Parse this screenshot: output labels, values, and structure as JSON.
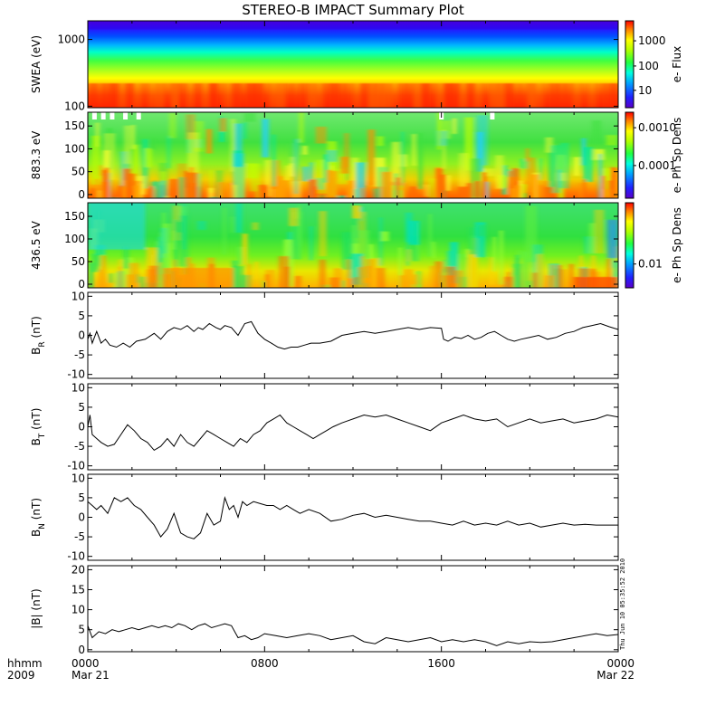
{
  "title": "STEREO-B IMPACT Summary Plot",
  "timestamp": "Thu Jun 10 05:35:52 2010",
  "xaxis": {
    "corner_top": "hhmm",
    "corner_bottom": "2009",
    "ticks": [
      {
        "t": 0,
        "label": "0000",
        "sub": "Mar 21"
      },
      {
        "t": 8,
        "label": "0800",
        "sub": ""
      },
      {
        "t": 16,
        "label": "1600",
        "sub": ""
      },
      {
        "t": 24,
        "label": "0000",
        "sub": "Mar 22"
      }
    ]
  },
  "chart_data": [
    {
      "type": "heatmap",
      "id": "swea",
      "ylabel": "SWEA (eV)",
      "yscale": "log",
      "ylim": [
        95,
        1900
      ],
      "yticks": [
        100,
        1000
      ],
      "yticklabels": [
        "100",
        "1000"
      ],
      "colorbar": {
        "label": "e- Flux",
        "ticks": [
          "10",
          "100",
          "1000"
        ],
        "scale": "log"
      },
      "description_of_values": "flux increases toward low energy, red below ~200 eV, blue above ~900 eV"
    },
    {
      "type": "heatmap",
      "id": "pad883",
      "ylabel": "883.3 eV",
      "ylim": [
        -8,
        180
      ],
      "yticks": [
        0,
        50,
        100,
        150
      ],
      "colorbar": {
        "label": "e- Ph Sp Dens",
        "ticks": [
          "0.0001",
          "0.0010"
        ],
        "scale": "log"
      }
    },
    {
      "type": "heatmap",
      "id": "pad436",
      "ylabel": "436.5 eV",
      "ylim": [
        -8,
        180
      ],
      "yticks": [
        0,
        50,
        100,
        150
      ],
      "colorbar": {
        "label": "e- Ph Sp Dens",
        "ticks": [
          "0.01"
        ],
        "scale": "log"
      }
    },
    {
      "type": "line",
      "id": "br",
      "ylabel": "B",
      "ylabel_sub": "R",
      "ylabel_unit": " (nT)",
      "ylim": [
        -11,
        11
      ],
      "yticks": [
        -10,
        -5,
        0,
        5,
        10
      ],
      "x": [
        0,
        0.1,
        0.2,
        0.4,
        0.6,
        0.8,
        1.0,
        1.3,
        1.6,
        1.9,
        2.2,
        2.6,
        3.0,
        3.3,
        3.6,
        3.9,
        4.2,
        4.5,
        4.8,
        5.0,
        5.2,
        5.5,
        5.8,
        6.0,
        6.2,
        6.5,
        6.8,
        7.1,
        7.4,
        7.7,
        8.0,
        8.3,
        8.6,
        8.9,
        9.2,
        9.5,
        9.8,
        10.1,
        10.5,
        11.0,
        11.5,
        12.0,
        12.5,
        13.0,
        13.5,
        14.0,
        14.5,
        15.0,
        15.5,
        16.0,
        16.1,
        16.3,
        16.6,
        16.9,
        17.2,
        17.5,
        17.8,
        18.1,
        18.4,
        18.7,
        19.0,
        19.3,
        19.6,
        20.0,
        20.4,
        20.8,
        21.2,
        21.6,
        22.0,
        22.4,
        22.8,
        23.2,
        23.6,
        24.0
      ],
      "y": [
        -1,
        0.5,
        -2,
        1,
        -2,
        -1,
        -2.5,
        -3,
        -2,
        -3,
        -1.5,
        -1,
        0.5,
        -1,
        1,
        2,
        1.5,
        2.5,
        1,
        2,
        1.5,
        3,
        2,
        1.5,
        2.5,
        2,
        0,
        3,
        3.5,
        0.5,
        -1,
        -2,
        -3,
        -3.5,
        -3,
        -3,
        -2.5,
        -2,
        -2,
        -1.5,
        0,
        0.5,
        1,
        0.5,
        1,
        1.5,
        2,
        1.5,
        2,
        1.8,
        -1,
        -1.5,
        -0.5,
        -0.8,
        0,
        -1,
        -0.5,
        0.5,
        1,
        0,
        -1,
        -1.5,
        -1,
        -0.5,
        0,
        -1,
        -0.5,
        0.5,
        1,
        2,
        2.5,
        3,
        2.2,
        1.5
      ]
    },
    {
      "type": "line",
      "id": "bt",
      "ylabel": "B",
      "ylabel_sub": "T",
      "ylabel_unit": " (nT)",
      "ylim": [
        -11,
        11
      ],
      "yticks": [
        -10,
        -5,
        0,
        5,
        10
      ],
      "x": [
        0,
        0.1,
        0.2,
        0.4,
        0.6,
        0.9,
        1.2,
        1.5,
        1.8,
        2.1,
        2.4,
        2.7,
        3.0,
        3.3,
        3.6,
        3.9,
        4.2,
        4.5,
        4.8,
        5.1,
        5.4,
        5.7,
        6.0,
        6.3,
        6.6,
        6.9,
        7.2,
        7.5,
        7.8,
        8.1,
        8.4,
        8.7,
        9.0,
        9.3,
        9.6,
        9.9,
        10.2,
        10.5,
        10.8,
        11.1,
        11.5,
        12.0,
        12.5,
        13.0,
        13.5,
        14.0,
        14.5,
        15.0,
        15.5,
        16.0,
        16.5,
        17.0,
        17.5,
        18.0,
        18.5,
        19.0,
        19.5,
        20.0,
        20.5,
        21.0,
        21.5,
        22.0,
        22.5,
        23.0,
        23.5,
        24.0
      ],
      "y": [
        0,
        3,
        -2,
        -3,
        -4,
        -5,
        -4.5,
        -2,
        0.5,
        -1,
        -3,
        -4,
        -6,
        -5,
        -3,
        -5,
        -2,
        -4,
        -5,
        -3,
        -1,
        -2,
        -3,
        -4,
        -5,
        -3,
        -4,
        -2,
        -1,
        1,
        2,
        3,
        1,
        0,
        -1,
        -2,
        -3,
        -2,
        -1,
        0,
        1,
        2,
        3,
        2.5,
        3,
        2,
        1,
        0,
        -1,
        1,
        2,
        3,
        2,
        1.5,
        2,
        0,
        1,
        2,
        1,
        1.5,
        2,
        1,
        1.5,
        2,
        3,
        2.5
      ]
    },
    {
      "type": "line",
      "id": "bn",
      "ylabel": "B",
      "ylabel_sub": "N",
      "ylabel_unit": " (nT)",
      "ylim": [
        -11,
        11
      ],
      "yticks": [
        -10,
        -5,
        0,
        5,
        10
      ],
      "x": [
        0,
        0.2,
        0.4,
        0.6,
        0.9,
        1.2,
        1.5,
        1.8,
        2.1,
        2.4,
        2.7,
        3.0,
        3.3,
        3.6,
        3.9,
        4.2,
        4.5,
        4.8,
        5.1,
        5.4,
        5.7,
        6.0,
        6.2,
        6.4,
        6.6,
        6.8,
        7.0,
        7.2,
        7.5,
        7.8,
        8.1,
        8.4,
        8.7,
        9.0,
        9.3,
        9.6,
        10.0,
        10.5,
        11.0,
        11.5,
        12.0,
        12.5,
        13.0,
        13.5,
        14.0,
        14.5,
        15.0,
        15.5,
        16.0,
        16.5,
        17.0,
        17.5,
        18.0,
        18.5,
        19.0,
        19.5,
        20.0,
        20.5,
        21.0,
        21.5,
        22.0,
        22.5,
        23.0,
        23.5,
        24.0
      ],
      "y": [
        4,
        3,
        2,
        3,
        1,
        5,
        4,
        5,
        3,
        2,
        0,
        -2,
        -5,
        -3,
        1,
        -4,
        -5,
        -5.5,
        -4,
        1,
        -2,
        -1,
        5,
        2,
        3,
        0,
        4,
        3,
        4,
        3.5,
        3,
        3,
        2,
        3,
        2,
        1,
        2,
        1,
        -1,
        -0.5,
        0.5,
        1,
        0,
        0.5,
        0,
        -0.5,
        -1,
        -1,
        -1.5,
        -2,
        -1,
        -2,
        -1.5,
        -2,
        -1,
        -2,
        -1.5,
        -2.5,
        -2,
        -1.5,
        -2,
        -1.8,
        -2,
        -2,
        -2
      ]
    },
    {
      "type": "line",
      "id": "bmag",
      "ylabel": "|B| (nT)",
      "ylim": [
        -0.5,
        21
      ],
      "yticks": [
        0,
        5,
        10,
        15,
        20
      ],
      "x": [
        0,
        0.2,
        0.5,
        0.8,
        1.1,
        1.4,
        1.7,
        2.0,
        2.3,
        2.6,
        2.9,
        3.2,
        3.5,
        3.8,
        4.1,
        4.4,
        4.7,
        5.0,
        5.3,
        5.6,
        5.9,
        6.2,
        6.5,
        6.8,
        7.1,
        7.4,
        7.7,
        8.0,
        8.5,
        9.0,
        9.5,
        10.0,
        10.5,
        11.0,
        11.5,
        12.0,
        12.5,
        13.0,
        13.5,
        14.0,
        14.5,
        15.0,
        15.5,
        16.0,
        16.5,
        17.0,
        17.5,
        18.0,
        18.5,
        19.0,
        19.5,
        20.0,
        20.5,
        21.0,
        21.5,
        22.0,
        22.5,
        23.0,
        23.5,
        24.0
      ],
      "y": [
        6,
        3,
        4.5,
        4,
        5,
        4.5,
        5,
        5.5,
        5,
        5.5,
        6,
        5.5,
        6,
        5.5,
        6.5,
        6,
        5,
        6,
        6.5,
        5.5,
        6,
        6.5,
        6,
        3,
        3.5,
        2.5,
        3,
        4,
        3.5,
        3,
        3.5,
        4,
        3.5,
        2.5,
        3,
        3.5,
        2,
        1.5,
        3,
        2.5,
        2,
        2.5,
        3,
        2,
        2.5,
        2,
        2.5,
        2,
        1,
        2,
        1.5,
        2,
        1.8,
        2,
        2.5,
        3,
        3.5,
        4,
        3.5,
        3.8
      ]
    }
  ]
}
